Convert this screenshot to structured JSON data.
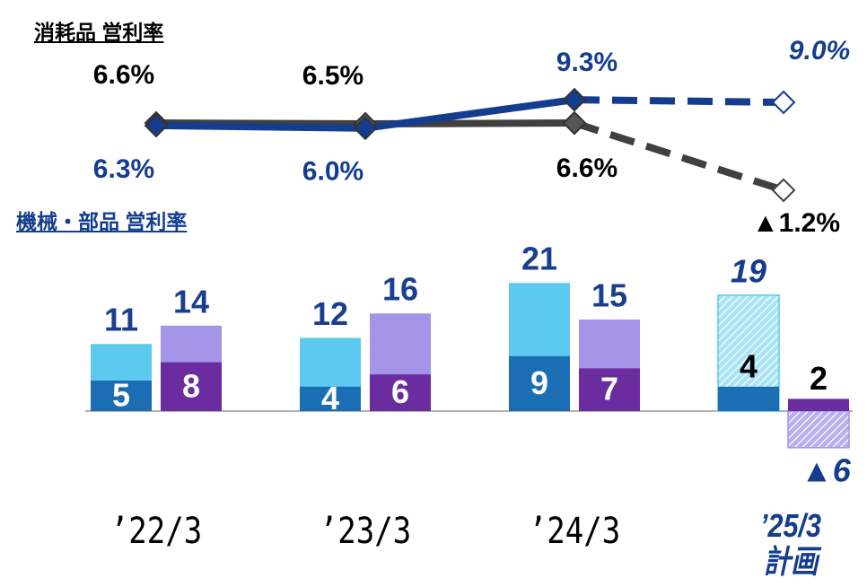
{
  "chart_data": {
    "type": "bar",
    "categories": [
      "’22/3",
      "’23/3",
      "’24/3",
      "’25/3\n計画"
    ],
    "forecast_index": 3,
    "ylim": [
      -7,
      22
    ],
    "y2lim": [
      -2,
      10
    ],
    "series": [
      {
        "color": "#5cc9ef",
        "inner_color": "#1b6db4",
        "values": [
          11,
          12,
          21,
          19
        ],
        "inner_values": [
          5,
          4,
          9,
          4
        ]
      },
      {
        "color": "#a394e8",
        "inner_color": "#6a2c9e",
        "values": [
          14,
          16,
          15,
          -6
        ],
        "value_labels": [
          "14",
          "16",
          "15",
          "▲6"
        ],
        "inner_values": [
          8,
          6,
          7,
          2
        ]
      }
    ],
    "lines": [
      {
        "name": "消耗品 営利率",
        "color": "#404040",
        "values": [
          6.6,
          6.5,
          6.6,
          -1.2
        ],
        "value_labels": [
          "6.6%",
          "6.5%",
          "6.6%",
          "▲1.2%"
        ]
      },
      {
        "name": "機械・部品 営利率",
        "color": "#143d8f",
        "values": [
          6.3,
          6.0,
          9.3,
          9.0
        ],
        "value_labels": [
          "6.3%",
          "6.0%",
          "9.3%",
          "9.0%"
        ]
      }
    ]
  }
}
